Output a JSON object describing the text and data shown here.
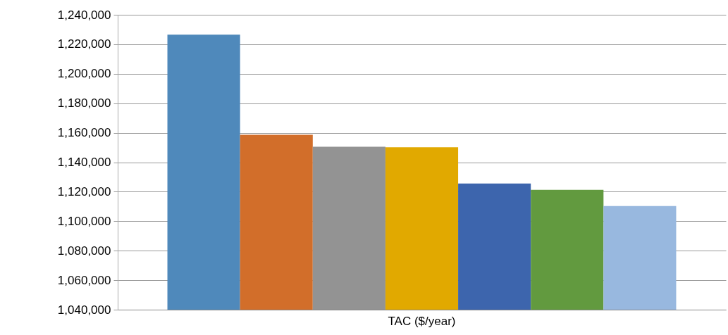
{
  "chart_data": {
    "type": "bar",
    "categories": [
      "TAC ($/year)"
    ],
    "series": [
      {
        "color": "#4f89bb",
        "values": [
          1226500
        ]
      },
      {
        "color": "#d26e2a",
        "values": [
          1158600
        ]
      },
      {
        "color": "#939393",
        "values": [
          1150500
        ]
      },
      {
        "color": "#e1a900",
        "values": [
          1150200
        ]
      },
      {
        "color": "#3d65ad",
        "values": [
          1125600
        ]
      },
      {
        "color": "#629a3f",
        "values": [
          1121300
        ]
      },
      {
        "color": "#98b8df",
        "values": [
          1110300
        ]
      }
    ],
    "ylim": [
      1040000,
      1240000
    ],
    "yticks": [
      {
        "value": 1040000,
        "label": "1,040,000"
      },
      {
        "value": 1060000,
        "label": "1,060,000"
      },
      {
        "value": 1080000,
        "label": "1,080,000"
      },
      {
        "value": 1100000,
        "label": "1,100,000"
      },
      {
        "value": 1120000,
        "label": "1,120,000"
      },
      {
        "value": 1140000,
        "label": "1,140,000"
      },
      {
        "value": 1160000,
        "label": "1,160,000"
      },
      {
        "value": 1180000,
        "label": "1,180,000"
      },
      {
        "value": 1200000,
        "label": "1,200,000"
      },
      {
        "value": 1220000,
        "label": "1,220,000"
      },
      {
        "value": 1240000,
        "label": "1,240,000"
      }
    ],
    "grid": "y",
    "legend": false
  }
}
